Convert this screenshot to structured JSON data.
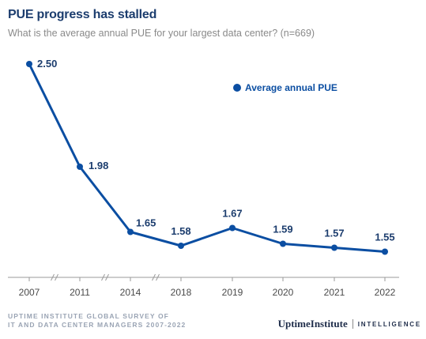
{
  "title": "PUE progress has stalled",
  "subtitle": "What is the average annual PUE for your largest data center? (n=669)",
  "chart_data": {
    "type": "line",
    "categories": [
      "2007",
      "2011",
      "2014",
      "2018",
      "2019",
      "2020",
      "2021",
      "2022"
    ],
    "series": [
      {
        "name": "Average annual PUE",
        "values": [
          2.5,
          1.98,
          1.65,
          1.58,
          1.67,
          1.59,
          1.57,
          1.55
        ],
        "labels": [
          "2.50",
          "1.98",
          "1.65",
          "1.58",
          "1.67",
          "1.59",
          "1.57",
          "1.55"
        ]
      }
    ],
    "axis_breaks_after": [
      "2007",
      "2011",
      "2014"
    ],
    "ylim": [
      1.42,
      2.52
    ],
    "grid": false,
    "legend_position": "top-right",
    "colors": {
      "series": "#0b4ea2",
      "label": "#1c3d6e",
      "axis": "#9a9a9a"
    }
  },
  "footer": {
    "source_line1": "UPTIME INSTITUTE GLOBAL SURVEY OF",
    "source_line2": "IT AND DATA CENTER MANAGERS 2007-2022",
    "brand_name": "UptimeInstitute",
    "brand_tag": "INTELLIGENCE"
  }
}
